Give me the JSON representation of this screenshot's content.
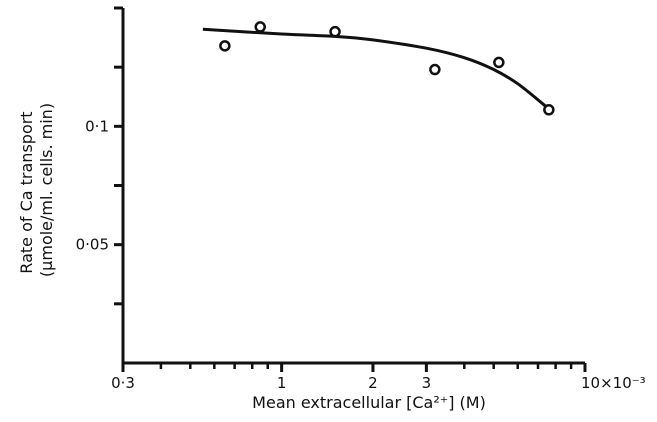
{
  "chart_data": {
    "type": "scatter",
    "xscale": "log",
    "xlim": [
      0.3,
      10
    ],
    "ylim": [
      0,
      0.15
    ],
    "xlabel": "Mean extracellular [Ca²⁺] (M)",
    "ylabel_lines": [
      "Rate of Ca transport",
      "(μmole/ml. cells. min)"
    ],
    "x_tick_labels": [
      {
        "value": 0.3,
        "label": "0·3"
      },
      {
        "value": 1,
        "label": "1"
      },
      {
        "value": 2,
        "label": "2"
      },
      {
        "value": 3,
        "label": "3"
      },
      {
        "value": 10,
        "label": "10×10⁻³"
      }
    ],
    "x_minor_ticks": [
      0.4,
      0.5,
      0.6,
      0.7,
      0.8,
      0.9,
      4,
      5,
      6,
      7,
      8,
      9
    ],
    "y_tick_labels": [
      {
        "value": 0.05,
        "label": "0·05"
      },
      {
        "value": 0.1,
        "label": "0·1"
      }
    ],
    "y_ticks": [
      0.025,
      0.05,
      0.075,
      0.1,
      0.125
    ],
    "points": [
      {
        "x": 0.65,
        "y": 0.134
      },
      {
        "x": 0.85,
        "y": 0.142
      },
      {
        "x": 1.5,
        "y": 0.14
      },
      {
        "x": 3.2,
        "y": 0.124
      },
      {
        "x": 5.2,
        "y": 0.127
      },
      {
        "x": 7.6,
        "y": 0.107
      }
    ],
    "curve": [
      {
        "x": 0.55,
        "y": 0.141
      },
      {
        "x": 1.0,
        "y": 0.139
      },
      {
        "x": 1.5,
        "y": 0.138
      },
      {
        "x": 2.0,
        "y": 0.1365
      },
      {
        "x": 3.0,
        "y": 0.133
      },
      {
        "x": 4.0,
        "y": 0.129
      },
      {
        "x": 5.0,
        "y": 0.124
      },
      {
        "x": 6.0,
        "y": 0.118
      },
      {
        "x": 7.5,
        "y": 0.108
      }
    ],
    "grid": false
  }
}
